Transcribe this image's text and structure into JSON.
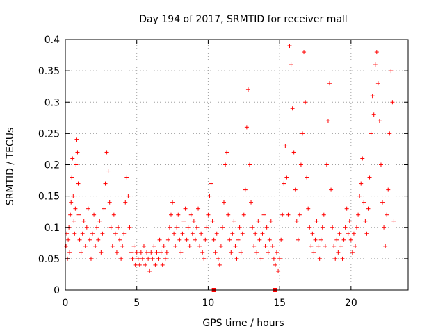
{
  "chart_data": {
    "type": "scatter",
    "title": "Day 194 of 2017, SRMTID for receiver mall",
    "xlabel": "GPS time / hours",
    "ylabel": "SRMTID / TECUs",
    "xlim": [
      0,
      24
    ],
    "ylim": [
      0,
      0.4
    ],
    "x_ticks": [
      0,
      5,
      10,
      15,
      20
    ],
    "x_tick_labels": [
      "0",
      "5",
      "10",
      "15",
      "20"
    ],
    "y_ticks": [
      0,
      0.05,
      0.1,
      0.15,
      0.2,
      0.25,
      0.3,
      0.35,
      0.4
    ],
    "y_tick_labels": [
      "0",
      "0.05",
      "0.1",
      "0.15",
      "0.2",
      "0.25",
      "0.3",
      "0.35",
      "0.4"
    ],
    "grid": true,
    "marker": "+",
    "color": "#ff0000",
    "series": [
      {
        "points": [
          [
            0.05,
            0.07
          ],
          [
            0.1,
            0.09
          ],
          [
            0.15,
            0.05
          ],
          [
            0.2,
            0.08
          ],
          [
            0.25,
            0.1
          ],
          [
            0.3,
            0.06
          ],
          [
            0.35,
            0.12
          ],
          [
            0.4,
            0.14
          ],
          [
            0.45,
            0.18
          ],
          [
            0.5,
            0.21
          ],
          [
            0.55,
            0.15
          ],
          [
            0.6,
            0.11
          ],
          [
            0.65,
            0.09
          ],
          [
            0.7,
            0.13
          ],
          [
            0.75,
            0.2
          ],
          [
            0.8,
            0.24
          ],
          [
            0.85,
            0.22
          ],
          [
            0.9,
            0.17
          ],
          [
            0.95,
            0.12
          ],
          [
            1.0,
            0.08
          ],
          [
            1.1,
            0.06
          ],
          [
            1.2,
            0.09
          ],
          [
            1.3,
            0.11
          ],
          [
            1.4,
            0.07
          ],
          [
            1.5,
            0.1
          ],
          [
            1.6,
            0.13
          ],
          [
            1.7,
            0.08
          ],
          [
            1.8,
            0.05
          ],
          [
            1.9,
            0.09
          ],
          [
            2.0,
            0.12
          ],
          [
            2.1,
            0.07
          ],
          [
            2.2,
            0.1
          ],
          [
            2.3,
            0.08
          ],
          [
            2.4,
            0.11
          ],
          [
            2.5,
            0.06
          ],
          [
            2.6,
            0.09
          ],
          [
            2.7,
            0.13
          ],
          [
            2.8,
            0.17
          ],
          [
            2.9,
            0.22
          ],
          [
            3.0,
            0.19
          ],
          [
            3.1,
            0.14
          ],
          [
            3.2,
            0.1
          ],
          [
            3.3,
            0.07
          ],
          [
            3.4,
            0.12
          ],
          [
            3.5,
            0.09
          ],
          [
            3.6,
            0.06
          ],
          [
            3.7,
            0.1
          ],
          [
            3.8,
            0.08
          ],
          [
            3.9,
            0.05
          ],
          [
            4.0,
            0.07
          ],
          [
            4.1,
            0.09
          ],
          [
            4.2,
            0.14
          ],
          [
            4.3,
            0.18
          ],
          [
            4.4,
            0.15
          ],
          [
            4.5,
            0.1
          ],
          [
            4.6,
            0.06
          ],
          [
            4.7,
            0.05
          ],
          [
            4.8,
            0.07
          ],
          [
            4.9,
            0.04
          ],
          [
            5.0,
            0.06
          ],
          [
            5.1,
            0.05
          ],
          [
            5.2,
            0.04
          ],
          [
            5.3,
            0.06
          ],
          [
            5.4,
            0.05
          ],
          [
            5.5,
            0.07
          ],
          [
            5.6,
            0.04
          ],
          [
            5.7,
            0.06
          ],
          [
            5.8,
            0.05
          ],
          [
            5.9,
            0.03
          ],
          [
            6.0,
            0.06
          ],
          [
            6.1,
            0.05
          ],
          [
            6.2,
            0.07
          ],
          [
            6.3,
            0.04
          ],
          [
            6.4,
            0.06
          ],
          [
            6.5,
            0.05
          ],
          [
            6.6,
            0.08
          ],
          [
            6.7,
            0.06
          ],
          [
            6.8,
            0.04
          ],
          [
            6.9,
            0.07
          ],
          [
            7.0,
            0.05
          ],
          [
            7.1,
            0.06
          ],
          [
            7.2,
            0.08
          ],
          [
            7.3,
            0.1
          ],
          [
            7.4,
            0.12
          ],
          [
            7.5,
            0.14
          ],
          [
            7.6,
            0.09
          ],
          [
            7.7,
            0.07
          ],
          [
            7.8,
            0.1
          ],
          [
            7.9,
            0.12
          ],
          [
            8.0,
            0.08
          ],
          [
            8.1,
            0.06
          ],
          [
            8.2,
            0.09
          ],
          [
            8.3,
            0.11
          ],
          [
            8.4,
            0.13
          ],
          [
            8.5,
            0.08
          ],
          [
            8.6,
            0.1
          ],
          [
            8.7,
            0.07
          ],
          [
            8.8,
            0.12
          ],
          [
            8.9,
            0.09
          ],
          [
            9.0,
            0.11
          ],
          [
            9.1,
            0.08
          ],
          [
            9.2,
            0.1
          ],
          [
            9.3,
            0.13
          ],
          [
            9.4,
            0.07
          ],
          [
            9.5,
            0.09
          ],
          [
            9.6,
            0.06
          ],
          [
            9.7,
            0.05
          ],
          [
            9.8,
            0.08
          ],
          [
            9.9,
            0.1
          ],
          [
            10.0,
            0.12
          ],
          [
            10.1,
            0.15
          ],
          [
            10.2,
            0.17
          ],
          [
            10.3,
            0.11
          ],
          [
            10.4,
            0.08
          ],
          [
            10.5,
            0.06
          ],
          [
            10.6,
            0.09
          ],
          [
            10.7,
            0.05
          ],
          [
            10.8,
            0.04
          ],
          [
            10.9,
            0.07
          ],
          [
            11.0,
            0.1
          ],
          [
            11.1,
            0.14
          ],
          [
            11.2,
            0.2
          ],
          [
            11.3,
            0.22
          ],
          [
            11.4,
            0.12
          ],
          [
            11.5,
            0.08
          ],
          [
            11.6,
            0.06
          ],
          [
            11.7,
            0.09
          ],
          [
            11.8,
            0.11
          ],
          [
            11.9,
            0.07
          ],
          [
            12.0,
            0.05
          ],
          [
            12.1,
            0.08
          ],
          [
            12.2,
            0.1
          ],
          [
            12.3,
            0.06
          ],
          [
            12.4,
            0.09
          ],
          [
            12.5,
            0.12
          ],
          [
            12.6,
            0.16
          ],
          [
            12.7,
            0.26
          ],
          [
            12.8,
            0.32
          ],
          [
            12.9,
            0.2
          ],
          [
            13.0,
            0.14
          ],
          [
            13.1,
            0.1
          ],
          [
            13.2,
            0.07
          ],
          [
            13.3,
            0.09
          ],
          [
            13.4,
            0.06
          ],
          [
            13.5,
            0.11
          ],
          [
            13.6,
            0.08
          ],
          [
            13.7,
            0.05
          ],
          [
            13.8,
            0.09
          ],
          [
            13.9,
            0.12
          ],
          [
            14.0,
            0.07
          ],
          [
            14.1,
            0.1
          ],
          [
            14.2,
            0.06
          ],
          [
            14.3,
            0.08
          ],
          [
            14.4,
            0.11
          ],
          [
            14.5,
            0.07
          ],
          [
            14.6,
            0.05
          ],
          [
            14.7,
            0.04
          ],
          [
            14.8,
            0.06
          ],
          [
            14.9,
            0.03
          ],
          [
            15.0,
            0.05
          ],
          [
            15.1,
            0.08
          ],
          [
            15.2,
            0.12
          ],
          [
            15.3,
            0.17
          ],
          [
            15.4,
            0.23
          ],
          [
            15.5,
            0.18
          ],
          [
            15.6,
            0.12
          ],
          [
            15.7,
            0.39
          ],
          [
            15.8,
            0.36
          ],
          [
            15.9,
            0.29
          ],
          [
            16.0,
            0.22
          ],
          [
            16.1,
            0.16
          ],
          [
            16.2,
            0.11
          ],
          [
            16.3,
            0.08
          ],
          [
            16.4,
            0.12
          ],
          [
            16.5,
            0.2
          ],
          [
            16.6,
            0.25
          ],
          [
            16.7,
            0.38
          ],
          [
            16.8,
            0.3
          ],
          [
            16.9,
            0.18
          ],
          [
            17.0,
            0.13
          ],
          [
            17.1,
            0.1
          ],
          [
            17.2,
            0.07
          ],
          [
            17.3,
            0.09
          ],
          [
            17.4,
            0.06
          ],
          [
            17.5,
            0.08
          ],
          [
            17.6,
            0.11
          ],
          [
            17.7,
            0.07
          ],
          [
            17.8,
            0.05
          ],
          [
            17.9,
            0.08
          ],
          [
            18.0,
            0.1
          ],
          [
            18.1,
            0.12
          ],
          [
            18.2,
            0.07
          ],
          [
            18.3,
            0.2
          ],
          [
            18.4,
            0.27
          ],
          [
            18.5,
            0.33
          ],
          [
            18.6,
            0.16
          ],
          [
            18.7,
            0.1
          ],
          [
            18.8,
            0.07
          ],
          [
            18.9,
            0.05
          ],
          [
            19.0,
            0.08
          ],
          [
            19.1,
            0.06
          ],
          [
            19.2,
            0.09
          ],
          [
            19.3,
            0.07
          ],
          [
            19.4,
            0.05
          ],
          [
            19.5,
            0.08
          ],
          [
            19.6,
            0.1
          ],
          [
            19.7,
            0.13
          ],
          [
            19.8,
            0.09
          ],
          [
            19.9,
            0.11
          ],
          [
            20.0,
            0.08
          ],
          [
            20.1,
            0.06
          ],
          [
            20.2,
            0.09
          ],
          [
            20.3,
            0.07
          ],
          [
            20.4,
            0.1
          ],
          [
            20.5,
            0.12
          ],
          [
            20.6,
            0.15
          ],
          [
            20.7,
            0.17
          ],
          [
            20.8,
            0.21
          ],
          [
            20.9,
            0.14
          ],
          [
            21.0,
            0.11
          ],
          [
            21.1,
            0.09
          ],
          [
            21.2,
            0.13
          ],
          [
            21.3,
            0.18
          ],
          [
            21.4,
            0.25
          ],
          [
            21.5,
            0.31
          ],
          [
            21.6,
            0.28
          ],
          [
            21.7,
            0.36
          ],
          [
            21.8,
            0.38
          ],
          [
            21.9,
            0.33
          ],
          [
            22.0,
            0.27
          ],
          [
            22.1,
            0.2
          ],
          [
            22.2,
            0.14
          ],
          [
            22.3,
            0.1
          ],
          [
            22.4,
            0.07
          ],
          [
            22.5,
            0.12
          ],
          [
            22.6,
            0.16
          ],
          [
            22.7,
            0.25
          ],
          [
            22.8,
            0.35
          ],
          [
            22.9,
            0.3
          ],
          [
            23.0,
            0.11
          ]
        ]
      }
    ],
    "bottom_markers_x": [
      10.4,
      14.7
    ]
  }
}
